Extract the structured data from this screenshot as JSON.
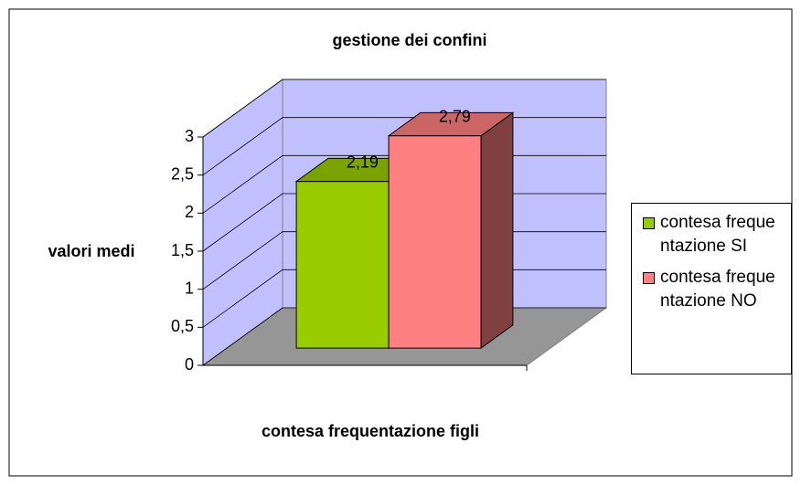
{
  "chart_data": {
    "type": "bar3d",
    "title": "gestione dei confini",
    "y_label": "valori medi",
    "x_label": "contesa frequentazione figli",
    "series": [
      {
        "name": "contesa frequentazione SI",
        "color": "#99cc00",
        "values": [
          2.19
        ],
        "value_labels": [
          "2,19"
        ]
      },
      {
        "name": "contesa frequentazione NO",
        "color": "#ff8080",
        "values": [
          2.79
        ],
        "value_labels": [
          "2,79"
        ]
      }
    ],
    "ylim": [
      0,
      3
    ],
    "yticks": [
      0,
      {
        "value": 0.5,
        "label": "0,5"
      },
      1,
      {
        "value": 1.5,
        "label": "1,5"
      },
      2,
      {
        "value": 2.5,
        "label": "2,5"
      },
      3
    ],
    "grid": true,
    "legend": "right"
  }
}
